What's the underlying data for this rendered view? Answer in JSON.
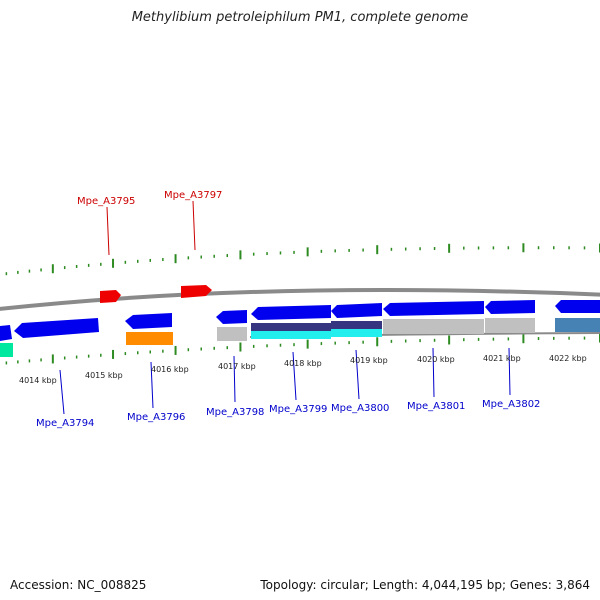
{
  "title": "Methylibium petroleiphilum PM1, complete genome",
  "footer": {
    "accession": "Accession: NC_008825",
    "summary": "Topology: circular; Length: 4,044,195 bp; Genes: 3,864"
  },
  "colors": {
    "backbone": "#808080",
    "forward_gene": "#ff0000",
    "reverse_gene": "#0000ee",
    "forward_label": "#cc0000",
    "reverse_label": "#0000cc",
    "tick": "#2e8b22",
    "orange_feature": "#ff8c00",
    "grey_feature": "#c0c0c0",
    "cyan_feature": "#22eeee",
    "teal_feature": "#00e8a0",
    "steel_feature": "#4682b4",
    "navy_feature": "#353580"
  },
  "kbp_labels": [
    "4014 kbp",
    "4015 kbp",
    "4016 kbp",
    "4017 kbp",
    "4018 kbp",
    "4019 kbp",
    "4020 kbp",
    "4021 kbp",
    "4022 kbp"
  ],
  "gene_labels_top": [
    "Mpe_A3795",
    "Mpe_A3797"
  ],
  "gene_labels_bottom": [
    "Mpe_A3794",
    "Mpe_A3796",
    "Mpe_A3798",
    "Mpe_A3799",
    "Mpe_A3800",
    "Mpe_A3801",
    "Mpe_A3802"
  ]
}
